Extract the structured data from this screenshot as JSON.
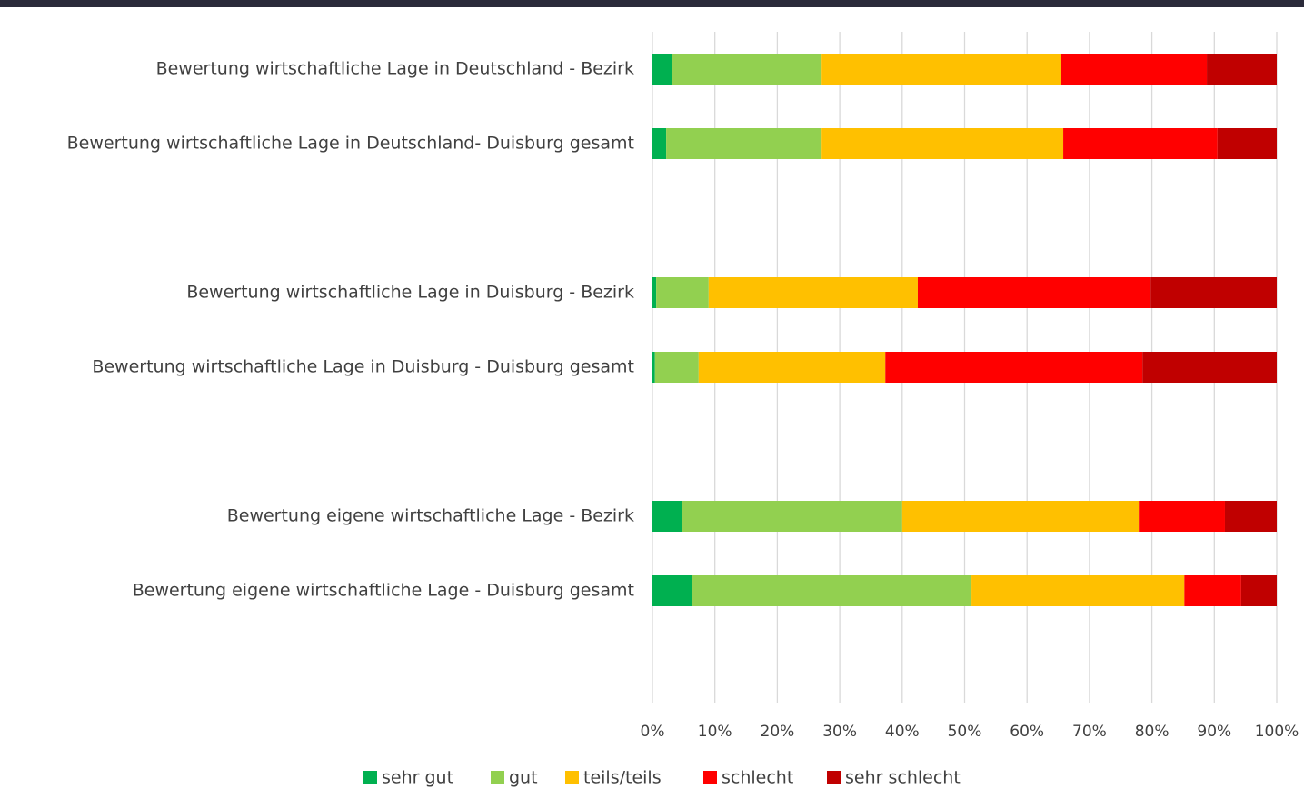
{
  "chart_data": {
    "type": "stacked-barh",
    "categories": [
      "Bewertung wirtschaftliche Lage in Deutschland - Bezirk",
      "Bewertung wirtschaftliche Lage in Deutschland- Duisburg gesamt",
      null,
      "Bewertung wirtschaftliche Lage in Duisburg - Bezirk",
      "Bewertung wirtschaftliche Lage in Duisburg - Duisburg gesamt",
      null,
      "Bewertung eigene wirtschaftliche Lage - Bezirk",
      "Bewertung eigene wirtschaftliche Lage - Duisburg gesamt",
      null
    ],
    "series": [
      {
        "name": "sehr gut",
        "color": "#00b050",
        "values": [
          3.1,
          2.2,
          null,
          0.6,
          0.4,
          null,
          4.7,
          6.3,
          null
        ]
      },
      {
        "name": "gut",
        "color": "#92d050",
        "values": [
          24.0,
          24.9,
          null,
          8.4,
          7.0,
          null,
          35.3,
          44.8,
          null
        ]
      },
      {
        "name": "teils/teils",
        "color": "#ffc000",
        "values": [
          38.4,
          38.7,
          null,
          33.5,
          29.9,
          null,
          37.9,
          34.1,
          null
        ]
      },
      {
        "name": "schlecht",
        "color": "#ff0000",
        "values": [
          23.3,
          24.7,
          null,
          37.3,
          41.2,
          null,
          13.8,
          9.1,
          null
        ]
      },
      {
        "name": "sehr schlecht",
        "color": "#c00000",
        "values": [
          11.2,
          9.5,
          null,
          20.2,
          21.5,
          null,
          8.3,
          5.7,
          null
        ]
      }
    ],
    "xlim": [
      0,
      100
    ],
    "xticks": [
      {
        "value": 0,
        "label": "0%"
      },
      {
        "value": 10,
        "label": "10%"
      },
      {
        "value": 20,
        "label": "20%"
      },
      {
        "value": 30,
        "label": "30%"
      },
      {
        "value": 40,
        "label": "40%"
      },
      {
        "value": 50,
        "label": "50%"
      },
      {
        "value": 60,
        "label": "60%"
      },
      {
        "value": 70,
        "label": "70%"
      },
      {
        "value": 80,
        "label": "80%"
      },
      {
        "value": 90,
        "label": "90%"
      },
      {
        "value": 100,
        "label": "100%"
      }
    ],
    "grid": true,
    "legend": "bottom"
  }
}
